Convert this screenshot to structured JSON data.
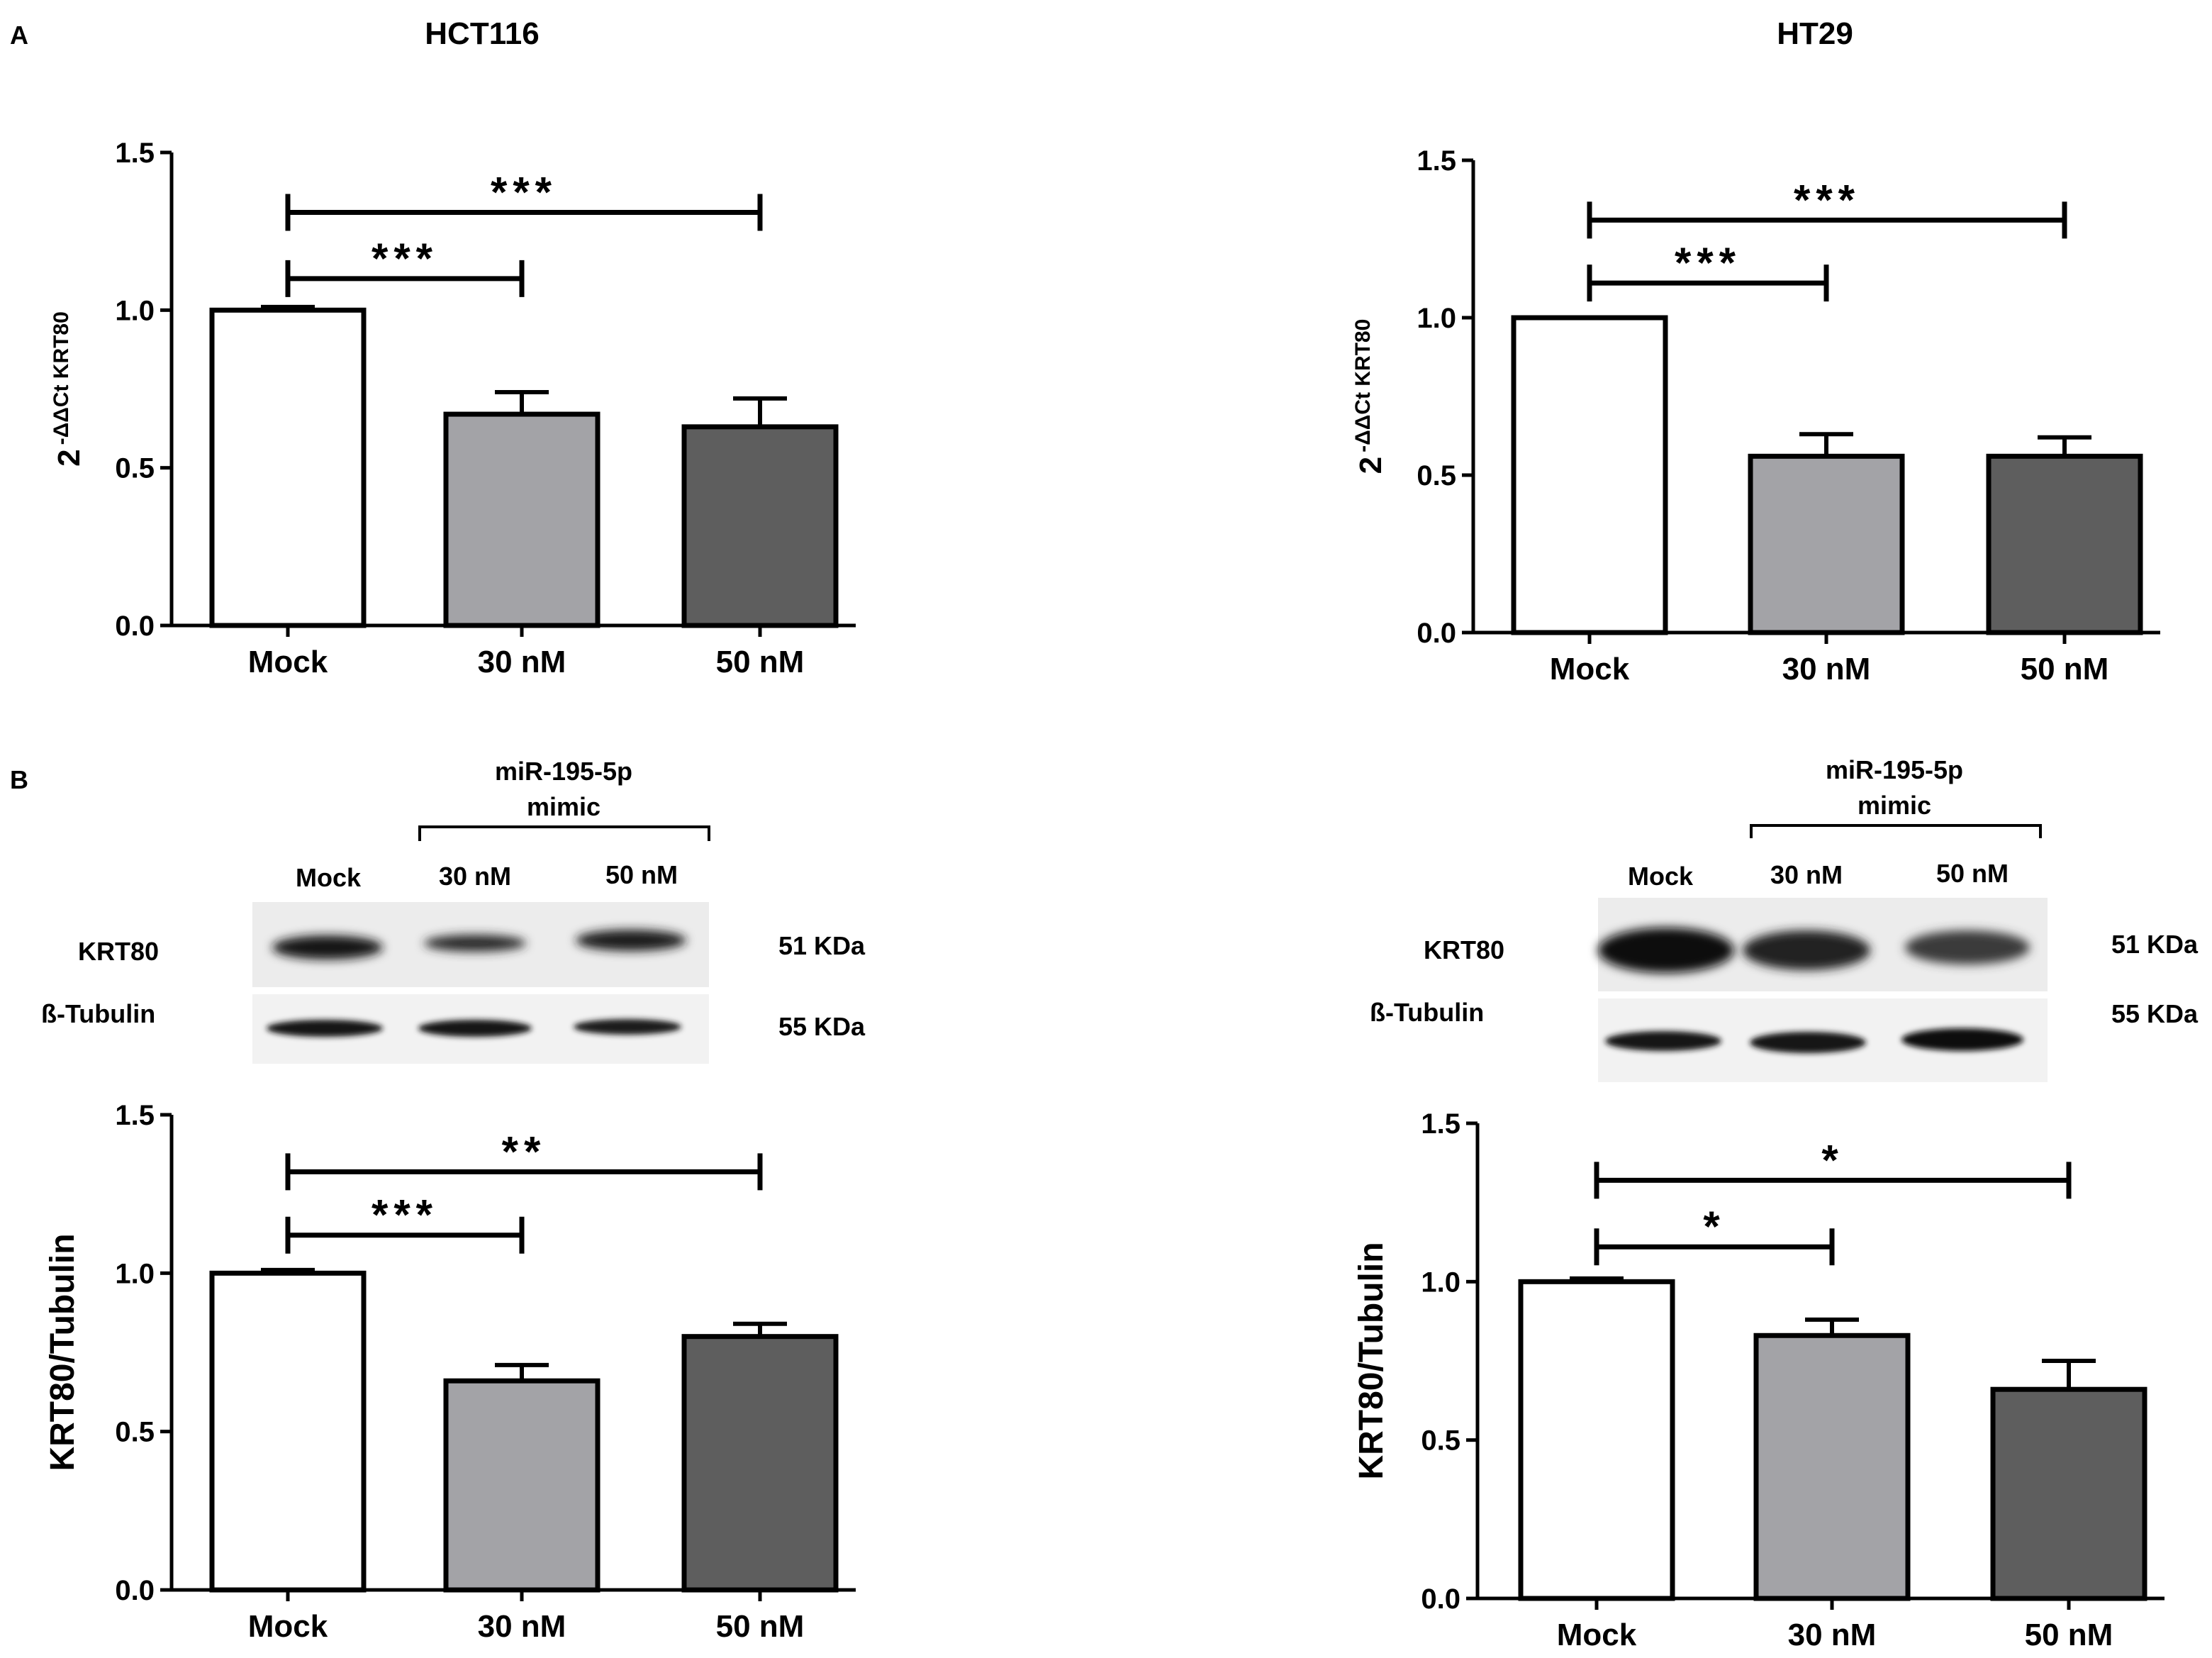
{
  "colors": {
    "bar_mock": "#ffffff",
    "bar_30": "#a3a3a7",
    "bar_50": "#5e5e5e",
    "stroke": "#000000"
  },
  "panel_a_letter": "A",
  "panel_b_letter": "B",
  "western_blot": [
    {
      "bracket_label_line1": "miR-195-5p",
      "bracket_label_line2": "mimic",
      "lanes": [
        "Mock",
        "30 nM",
        "50 nM"
      ],
      "rows": [
        {
          "label": "KRT80",
          "size": "51 KDa"
        },
        {
          "label": "ß-Tubulin",
          "size": "55 KDa"
        }
      ]
    },
    {
      "bracket_label_line1": "miR-195-5p",
      "bracket_label_line2": "mimic",
      "lanes": [
        "Mock",
        "30 nM",
        "50 nM"
      ],
      "rows": [
        {
          "label": "KRT80",
          "size": "51 KDa"
        },
        {
          "label": "ß-Tubulin",
          "size": "55 KDa"
        }
      ]
    }
  ],
  "chart_data": [
    {
      "type": "bar",
      "title": "HCT116",
      "ylabel_base": "2",
      "ylabel_sup": "-ΔΔCt KRT80",
      "categories": [
        "Mock",
        "30 nM",
        "50 nM"
      ],
      "values": [
        1.0,
        0.67,
        0.63
      ],
      "errors": [
        0.01,
        0.07,
        0.09
      ],
      "ylim": [
        0,
        1.5
      ],
      "yticks": [
        "0.0",
        "0.5",
        "1.0",
        "1.5"
      ],
      "significance": [
        {
          "from": 0,
          "to": 1,
          "label": "***",
          "y": 1.1
        },
        {
          "from": 0,
          "to": 2,
          "label": "***",
          "y": 1.31
        }
      ]
    },
    {
      "type": "bar",
      "title": "HT29",
      "ylabel_base": "2",
      "ylabel_sup": "-ΔΔCt KRT80",
      "categories": [
        "Mock",
        "30 nM",
        "50 nM"
      ],
      "values": [
        1.0,
        0.56,
        0.56
      ],
      "errors": [
        0.0,
        0.07,
        0.06
      ],
      "ylim": [
        0,
        1.5
      ],
      "yticks": [
        "0.0",
        "0.5",
        "1.0",
        "1.5"
      ],
      "significance": [
        {
          "from": 0,
          "to": 1,
          "label": "***",
          "y": 1.11
        },
        {
          "from": 0,
          "to": 2,
          "label": "***",
          "y": 1.31
        }
      ]
    },
    {
      "type": "bar",
      "title": "",
      "ylabel": "KRT80/Tubulin",
      "categories": [
        "Mock",
        "30 nM",
        "50 nM"
      ],
      "values": [
        1.0,
        0.66,
        0.8
      ],
      "errors": [
        0.01,
        0.05,
        0.04
      ],
      "ylim": [
        0,
        1.5
      ],
      "yticks": [
        "0.0",
        "0.5",
        "1.0",
        "1.5"
      ],
      "significance": [
        {
          "from": 0,
          "to": 1,
          "label": "***",
          "y": 1.12
        },
        {
          "from": 0,
          "to": 2,
          "label": "**",
          "y": 1.32
        }
      ]
    },
    {
      "type": "bar",
      "title": "",
      "ylabel": "KRT80/Tubulin",
      "categories": [
        "Mock",
        "30 nM",
        "50 nM"
      ],
      "values": [
        1.0,
        0.83,
        0.66
      ],
      "errors": [
        0.01,
        0.05,
        0.09
      ],
      "ylim": [
        0,
        1.5
      ],
      "yticks": [
        "0.0",
        "0.5",
        "1.0",
        "1.5"
      ],
      "significance": [
        {
          "from": 0,
          "to": 1,
          "label": "*",
          "y": 1.11
        },
        {
          "from": 0,
          "to": 2,
          "label": "*",
          "y": 1.32
        }
      ]
    }
  ]
}
